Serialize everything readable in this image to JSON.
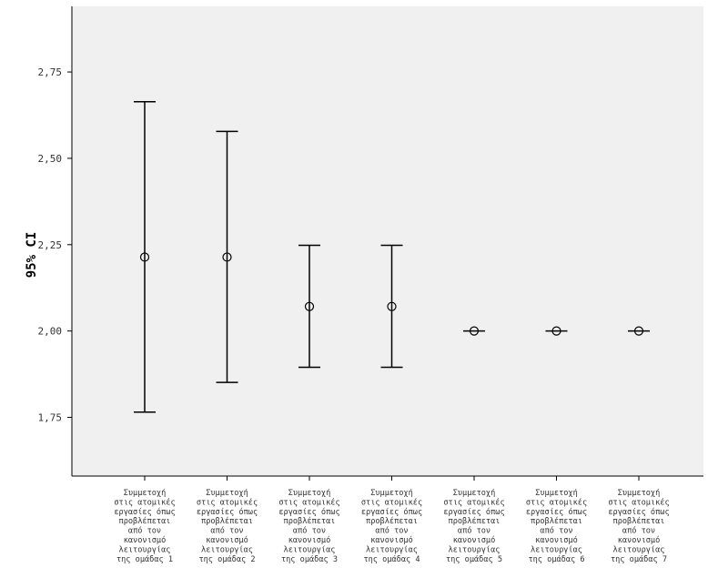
{
  "chart_data": {
    "type": "errorbar",
    "ylabel": "95% CI",
    "xlabel": "",
    "ylim": [
      1.58,
      2.94
    ],
    "yticks": [
      1.75,
      2.0,
      2.25,
      2.5,
      2.75
    ],
    "ytick_labels": [
      "1,75",
      "2,00",
      "2,25",
      "2,50",
      "2,75"
    ],
    "grid": false,
    "colors": {
      "plot_background": "#f0f0f0",
      "axis": "#000000",
      "marks": "#000000"
    },
    "categories": [
      [
        "Συμμετοχή",
        "στις ατομικές",
        "εργασίες όπως",
        "προβλέπεται",
        "από τον",
        "κανονισμό",
        "λειτουργίας",
        "της ομάδας 1"
      ],
      [
        "Συμμετοχή",
        "στις ατομικές",
        "εργασίες όπως",
        "προβλέπεται",
        "από τον",
        "κανονισμό",
        "λειτουργίας",
        "της ομάδας 2"
      ],
      [
        "Συμμετοχή",
        "στις ατομικές",
        "εργασίες όπως",
        "προβλέπεται",
        "από τον",
        "κανονισμό",
        "λειτουργίας",
        "της ομάδας 3"
      ],
      [
        "Συμμετοχή",
        "στις ατομικές",
        "εργασίες όπως",
        "προβλέπεται",
        "από τον",
        "κανονισμό",
        "λειτουργίας",
        "της ομάδας 4"
      ],
      [
        "Συμμετοχή",
        "στις ατομικές",
        "εργασίες όπως",
        "προβλέπεται",
        "από τον",
        "κανονισμό",
        "λειτουργίας",
        "της ομάδας 5"
      ],
      [
        "Συμμετοχή",
        "στις ατομικές",
        "εργασίες όπως",
        "προβλέπεται",
        "από τον",
        "κανονισμό",
        "λειτουργίας",
        "της ομάδας 6"
      ],
      [
        "Συμμετοχή",
        "στις ατομικές",
        "εργασίες όπως",
        "προβλέπεται",
        "από τον",
        "κανονισμό",
        "λειτουργίας",
        "της ομάδας 7"
      ]
    ],
    "means": [
      2.214,
      2.214,
      2.071,
      2.071,
      2.0,
      2.0,
      2.0
    ],
    "lower": [
      1.765,
      1.851,
      1.895,
      1.895,
      2.0,
      2.0,
      2.0
    ],
    "upper": [
      2.664,
      2.578,
      2.248,
      2.248,
      2.0,
      2.0,
      2.0
    ]
  }
}
